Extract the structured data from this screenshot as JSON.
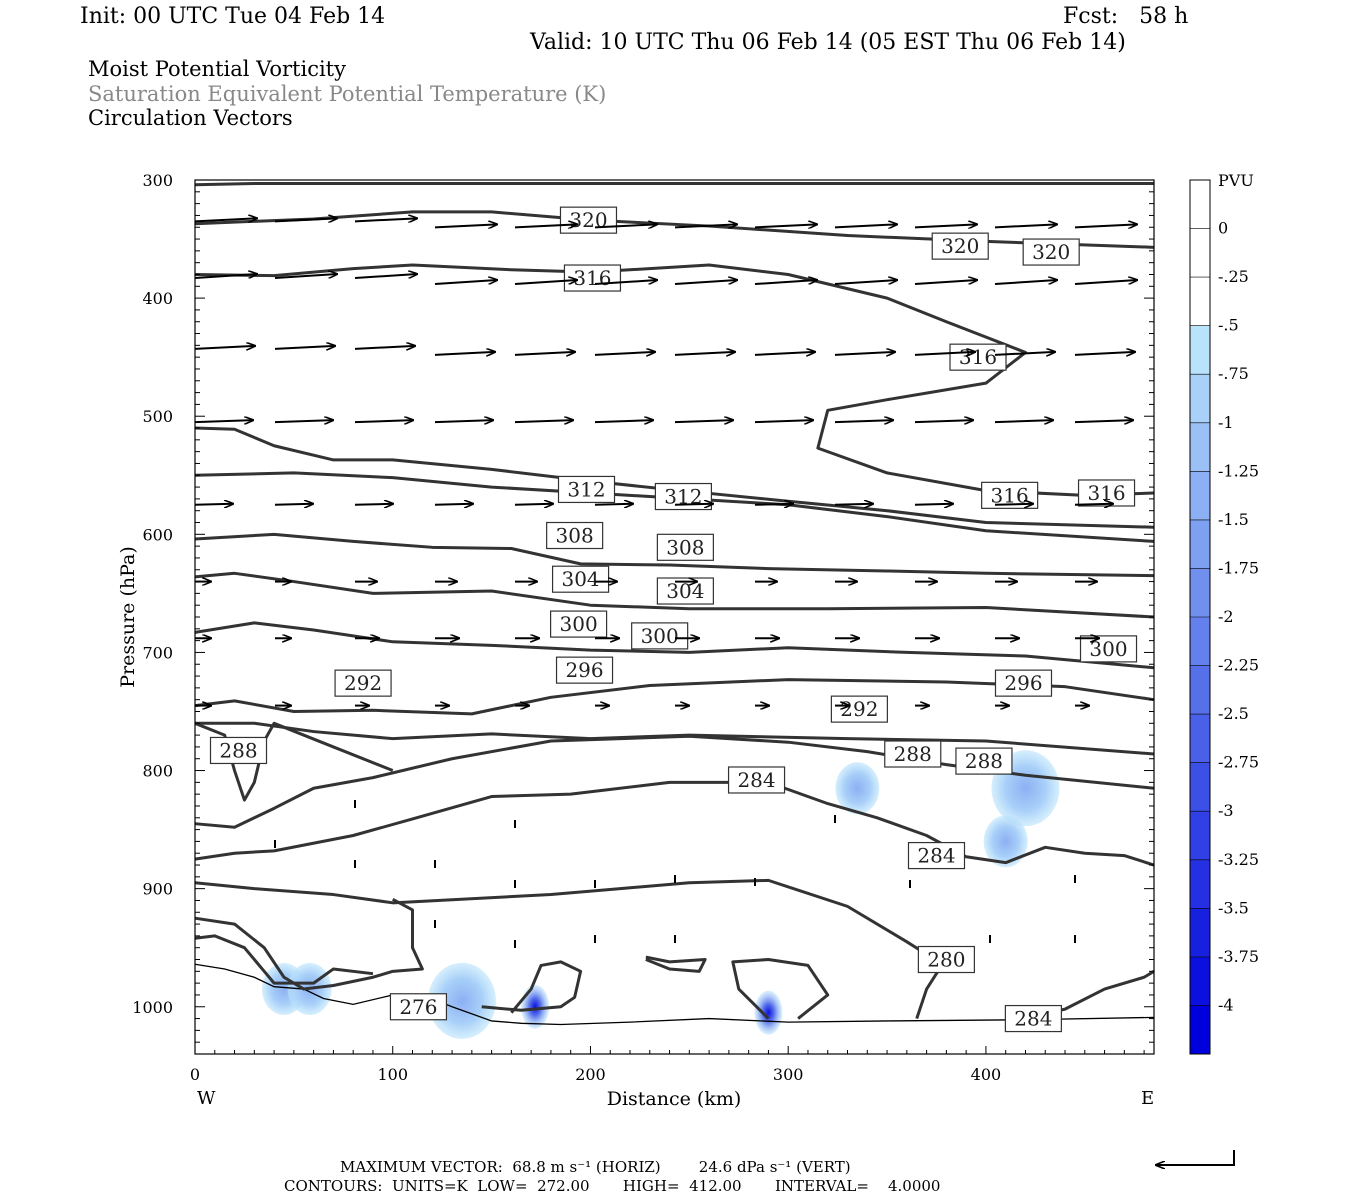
{
  "header": {
    "init": "Init: 00 UTC Tue 04 Feb 14",
    "fcst": "Fcst:   58 h",
    "valid": "Valid: 10 UTC Thu 06 Feb 14 (05 EST Thu 06 Feb 14)",
    "field1": "Moist Potential Vorticity",
    "field2": "Saturation Equivalent Potential Temperature (K)",
    "field3": "Circulation Vectors"
  },
  "chart_data": {
    "type": "heatmap",
    "xlabel": "Distance (km)",
    "ylabel": "Pressure (hPa)",
    "xlim": [
      0,
      485
    ],
    "ylim": [
      1040,
      300
    ],
    "x_ticks": [
      0,
      100,
      200,
      300,
      400
    ],
    "y_ticks": [
      300,
      400,
      500,
      600,
      700,
      800,
      900,
      1000
    ],
    "x_end_labels": {
      "left": "W",
      "right": "E"
    },
    "colorbar": {
      "unit": "PVU",
      "ticks": [
        "0",
        "-.25",
        "-.5",
        "-.75",
        "-1",
        "-1.25",
        "-1.5",
        "-1.75",
        "-2",
        "-2.25",
        "-2.5",
        "-2.75",
        "-3",
        "-3.25",
        "-3.5",
        "-3.75",
        "-4"
      ],
      "colors": [
        "#ffffff",
        "#ffffff",
        "#b9e3fb",
        "#a9d0f9",
        "#9bc0f6",
        "#8cb0f3",
        "#7ea0f1",
        "#7190ee",
        "#6480ec",
        "#5670ea",
        "#4a60e8",
        "#3d50e6",
        "#3040e4",
        "#2430e2",
        "#1820e0",
        "#0c10de",
        "#0000dc"
      ]
    },
    "contours": [
      {
        "value": 320,
        "labels_x": [
          199,
          387,
          433
        ],
        "labels_p": [
          334,
          356,
          361
        ]
      },
      {
        "value": 316,
        "labels_x": [
          201,
          396,
          412,
          461
        ],
        "labels_p": [
          383,
          450,
          567,
          565
        ]
      },
      {
        "value": 312,
        "labels_x": [
          198,
          247
        ],
        "labels_p": [
          562,
          568
        ]
      },
      {
        "value": 308,
        "labels_x": [
          192,
          248
        ],
        "labels_p": [
          601,
          611
        ]
      },
      {
        "value": 304,
        "labels_x": [
          195,
          248
        ],
        "labels_p": [
          638,
          648
        ]
      },
      {
        "value": 300,
        "labels_x": [
          194,
          235,
          462
        ],
        "labels_p": [
          676,
          686,
          697
        ]
      },
      {
        "value": 296,
        "labels_x": [
          197,
          419
        ],
        "labels_p": [
          715,
          726
        ]
      },
      {
        "value": 292,
        "labels_x": [
          85,
          336
        ],
        "labels_p": [
          726,
          748
        ]
      },
      {
        "value": 288,
        "labels_x": [
          22,
          363,
          399
        ],
        "labels_p": [
          783,
          786,
          792
        ]
      },
      {
        "value": 284,
        "labels_x": [
          284,
          375,
          424
        ],
        "labels_p": [
          808,
          872,
          1010
        ]
      },
      {
        "value": 280,
        "labels_x": [
          380
        ],
        "labels_p": [
          960
        ]
      },
      {
        "value": 276,
        "labels_x": [
          113
        ],
        "labels_p": [
          1000
        ]
      }
    ],
    "pv_shading": [
      {
        "x": 420,
        "p": 815,
        "pv": -1.5
      },
      {
        "x": 410,
        "p": 860,
        "pv": -1.0
      },
      {
        "x": 335,
        "p": 815,
        "pv": -1.0
      },
      {
        "x": 172,
        "p": 1000,
        "pv": -4.0
      },
      {
        "x": 290,
        "p": 1005,
        "pv": -3.75
      },
      {
        "x": 135,
        "p": 995,
        "pv": -2.0
      },
      {
        "x": 45,
        "p": 985,
        "pv": -1.25
      },
      {
        "x": 58,
        "p": 985,
        "pv": -1.25
      }
    ]
  },
  "footer": {
    "max_vector": "MAXIMUM VECTOR:  68.8 m s⁻¹ (HORIZ)        24.6 dPa s⁻¹ (VERT)",
    "contours": "CONTOURS:  UNITS=K  LOW=  272.00       HIGH=  412.00       INTERVAL=    4.0000"
  }
}
